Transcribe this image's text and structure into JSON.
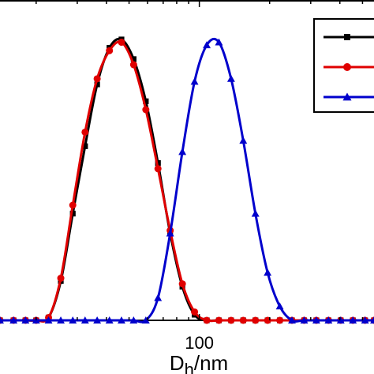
{
  "chart_data": {
    "type": "line",
    "title": "",
    "xlabel": {
      "main": "D",
      "subscript": "h",
      "unit": "/nm"
    },
    "ylabel": "",
    "x_scale": "log",
    "xlim": [
      14,
      560
    ],
    "ylim": [
      0,
      1
    ],
    "x_ticks": [
      {
        "value": 100,
        "label": "100"
      }
    ],
    "grid": false,
    "legend": {
      "position": "top-right",
      "entries": [
        {
          "series": 0,
          "label": ""
        },
        {
          "series": 1,
          "label": ""
        },
        {
          "series": 2,
          "label": ""
        }
      ]
    },
    "series": [
      {
        "color": "#000000",
        "marker": "square",
        "x": [
          14,
          16,
          18,
          20,
          22.6,
          25.5,
          28.7,
          32.4,
          36.5,
          41.2,
          46.4,
          52.3,
          59,
          66.5,
          75,
          84.6,
          95.4,
          107.6,
          121.3,
          136.8,
          154.2,
          173.9,
          196.1,
          221.1,
          249.3,
          281.2,
          317.1,
          357.5,
          403.2,
          454.6,
          512.7,
          560
        ],
        "y": [
          0,
          0,
          0,
          0,
          0.01,
          0.14,
          0.38,
          0.62,
          0.84,
          0.97,
          1.0,
          0.93,
          0.78,
          0.56,
          0.31,
          0.12,
          0.02,
          0,
          0,
          0,
          0,
          0,
          0,
          0,
          0,
          0,
          0,
          0,
          0,
          0,
          0,
          0
        ]
      },
      {
        "color": "#e00000",
        "marker": "circle",
        "x": [
          14,
          16,
          18,
          20,
          22.6,
          25.5,
          28.7,
          32.4,
          36.5,
          41.2,
          46.4,
          52.3,
          59,
          66.5,
          75,
          84.6,
          95.4,
          107.6,
          121.3,
          136.8,
          154.2,
          173.9,
          196.1,
          221.1,
          249.3,
          281.2,
          317.1,
          357.5,
          403.2,
          454.6,
          512.7,
          560
        ],
        "y": [
          0,
          0,
          0,
          0,
          0.01,
          0.15,
          0.41,
          0.67,
          0.86,
          0.96,
          0.99,
          0.91,
          0.75,
          0.54,
          0.32,
          0.13,
          0.03,
          0,
          0,
          0,
          0,
          0,
          0,
          0,
          0,
          0,
          0,
          0,
          0,
          0,
          0,
          0
        ]
      },
      {
        "color": "#0000cc",
        "marker": "triangle",
        "x": [
          14,
          16,
          18,
          20,
          22.6,
          25.5,
          28.7,
          32.4,
          36.5,
          41.2,
          46.4,
          52.3,
          59,
          66.5,
          75,
          84.6,
          95.4,
          107.6,
          121.3,
          136.8,
          154.2,
          173.9,
          196.1,
          221.1,
          249.3,
          281.2,
          317.1,
          357.5,
          403.2,
          454.6,
          512.7,
          560
        ],
        "y": [
          0,
          0,
          0,
          0,
          0,
          0,
          0,
          0,
          0,
          0,
          0,
          0,
          0,
          0.08,
          0.31,
          0.6,
          0.85,
          0.98,
          0.99,
          0.86,
          0.64,
          0.38,
          0.17,
          0.05,
          0,
          0,
          0,
          0,
          0,
          0,
          0,
          0
        ]
      }
    ]
  }
}
